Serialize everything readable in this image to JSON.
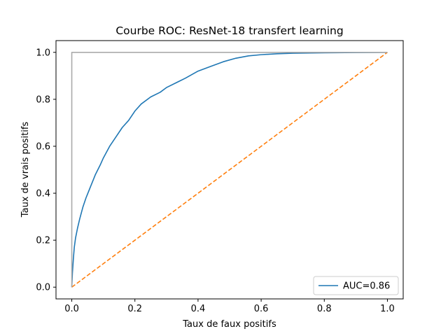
{
  "chart_data": {
    "type": "line",
    "title": "Courbe ROC:  ResNet-18 transfert learning",
    "xlabel": "Taux de faux positifs",
    "ylabel": "Taux de vrais positifs",
    "xlim": [
      -0.05,
      1.05
    ],
    "ylim": [
      -0.05,
      1.05
    ],
    "xticks": [
      0.0,
      0.2,
      0.4,
      0.6,
      0.8,
      1.0
    ],
    "xtick_labels": [
      "0.0",
      "0.2",
      "0.4",
      "0.6",
      "0.8",
      "1.0"
    ],
    "yticks": [
      0.0,
      0.2,
      0.4,
      0.6,
      0.8,
      1.0
    ],
    "ytick_labels": [
      "0.0",
      "0.2",
      "0.4",
      "0.6",
      "0.8",
      "1.0"
    ],
    "grid": false,
    "legend_position": "lower right",
    "series": [
      {
        "name": "AUC=0.86",
        "color": "#1f77b4",
        "style": "solid",
        "x": [
          0.0,
          0.002,
          0.005,
          0.008,
          0.012,
          0.018,
          0.025,
          0.035,
          0.045,
          0.06,
          0.075,
          0.09,
          0.1,
          0.12,
          0.14,
          0.16,
          0.18,
          0.2,
          0.22,
          0.25,
          0.28,
          0.3,
          0.33,
          0.36,
          0.4,
          0.44,
          0.48,
          0.52,
          0.56,
          0.6,
          0.65,
          0.7,
          0.8,
          0.9,
          1.0
        ],
        "y": [
          0.0,
          0.06,
          0.12,
          0.17,
          0.21,
          0.25,
          0.29,
          0.34,
          0.38,
          0.43,
          0.48,
          0.52,
          0.55,
          0.6,
          0.64,
          0.68,
          0.71,
          0.75,
          0.78,
          0.81,
          0.83,
          0.85,
          0.87,
          0.89,
          0.92,
          0.94,
          0.96,
          0.975,
          0.985,
          0.99,
          0.994,
          0.996,
          0.998,
          0.999,
          1.0
        ]
      },
      {
        "name": "",
        "color": "#ff7f0e",
        "style": "dashed",
        "x": [
          0.0,
          1.0
        ],
        "y": [
          0.0,
          1.0
        ]
      },
      {
        "name": "",
        "color": "#aaaaaa",
        "style": "solid",
        "x": [
          0.0,
          0.0,
          1.0
        ],
        "y": [
          0.0,
          1.0,
          1.0
        ]
      }
    ]
  }
}
